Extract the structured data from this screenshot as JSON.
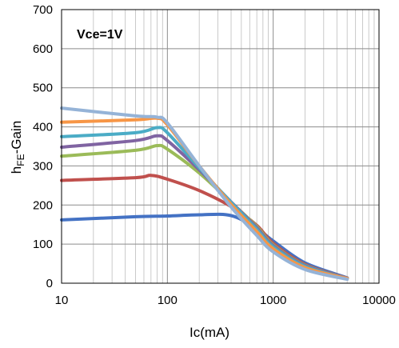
{
  "chart_data": {
    "type": "line",
    "annotation": "Vce=1V",
    "xlabel": "Ic(mA)",
    "ylabel": "hFE-Gain",
    "ylabel_parts": {
      "main": "h",
      "sub": "FE",
      "rest": "-Gain"
    },
    "x_scale": "log",
    "xlim": [
      10,
      10000
    ],
    "ylim": [
      0,
      700
    ],
    "x_ticks": [
      10,
      100,
      1000,
      10000
    ],
    "x_tick_labels": [
      "10",
      "100",
      "1000",
      "10000"
    ],
    "y_ticks": [
      0,
      100,
      200,
      300,
      400,
      500,
      600,
      700
    ],
    "y_tick_labels": [
      "0",
      "100",
      "200",
      "300",
      "400",
      "500",
      "600",
      "700"
    ],
    "grid": true,
    "legend": "none",
    "series": [
      {
        "color": "#4472C4",
        "points": [
          [
            10,
            162
          ],
          [
            50,
            170
          ],
          [
            100,
            172
          ],
          [
            200,
            175
          ],
          [
            400,
            173
          ],
          [
            700,
            140
          ],
          [
            1000,
            108
          ],
          [
            2000,
            52
          ],
          [
            5000,
            14
          ]
        ]
      },
      {
        "color": "#C0504D",
        "points": [
          [
            10,
            263
          ],
          [
            50,
            270
          ],
          [
            70,
            276
          ],
          [
            100,
            266
          ],
          [
            200,
            237
          ],
          [
            400,
            196
          ],
          [
            700,
            148
          ],
          [
            1000,
            102
          ],
          [
            2000,
            48
          ],
          [
            5000,
            13
          ]
        ]
      },
      {
        "color": "#9BBB59",
        "points": [
          [
            10,
            325
          ],
          [
            50,
            340
          ],
          [
            80,
            352
          ],
          [
            100,
            343
          ],
          [
            200,
            282
          ],
          [
            400,
            207
          ],
          [
            700,
            145
          ],
          [
            1000,
            98
          ],
          [
            2000,
            46
          ],
          [
            5000,
            13
          ]
        ]
      },
      {
        "color": "#8064A2",
        "points": [
          [
            10,
            348
          ],
          [
            50,
            365
          ],
          [
            80,
            377
          ],
          [
            100,
            365
          ],
          [
            200,
            290
          ],
          [
            400,
            208
          ],
          [
            700,
            142
          ],
          [
            1000,
            96
          ],
          [
            2000,
            45
          ],
          [
            5000,
            13
          ]
        ]
      },
      {
        "color": "#4BACC6",
        "points": [
          [
            10,
            375
          ],
          [
            50,
            385
          ],
          [
            80,
            398
          ],
          [
            100,
            385
          ],
          [
            200,
            295
          ],
          [
            400,
            207
          ],
          [
            700,
            138
          ],
          [
            1000,
            93
          ],
          [
            2000,
            43
          ],
          [
            5000,
            12
          ]
        ]
      },
      {
        "color": "#F79646",
        "points": [
          [
            10,
            412
          ],
          [
            50,
            418
          ],
          [
            80,
            422
          ],
          [
            100,
            405
          ],
          [
            200,
            300
          ],
          [
            400,
            202
          ],
          [
            700,
            132
          ],
          [
            1000,
            88
          ],
          [
            2000,
            40
          ],
          [
            5000,
            12
          ]
        ]
      },
      {
        "color": "#95B3D7",
        "points": [
          [
            10,
            448
          ],
          [
            50,
            428
          ],
          [
            80,
            425
          ],
          [
            100,
            410
          ],
          [
            200,
            300
          ],
          [
            400,
            195
          ],
          [
            700,
            122
          ],
          [
            1000,
            80
          ],
          [
            2000,
            35
          ],
          [
            5000,
            10
          ]
        ]
      }
    ]
  }
}
